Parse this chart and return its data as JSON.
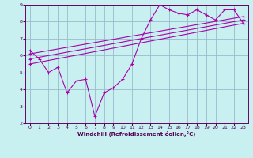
{
  "xlabel": "Windchill (Refroidissement éolien,°C)",
  "bg_color": "#c8f0f0",
  "line_color": "#aa00aa",
  "grid_color": "#99bbcc",
  "axis_color": "#660066",
  "text_color": "#550055",
  "xlim": [
    -0.5,
    23.5
  ],
  "ylim": [
    2,
    9
  ],
  "xticks": [
    0,
    1,
    2,
    3,
    4,
    5,
    6,
    7,
    8,
    9,
    10,
    11,
    12,
    13,
    14,
    15,
    16,
    17,
    18,
    19,
    20,
    21,
    22,
    23
  ],
  "yticks": [
    2,
    3,
    4,
    5,
    6,
    7,
    8,
    9
  ],
  "series1": [
    [
      0,
      6.3
    ],
    [
      1,
      5.8
    ],
    [
      2,
      5.0
    ],
    [
      3,
      5.3
    ],
    [
      4,
      3.8
    ],
    [
      5,
      4.5
    ],
    [
      6,
      4.6
    ],
    [
      7,
      2.4
    ],
    [
      8,
      3.8
    ],
    [
      9,
      4.1
    ],
    [
      10,
      4.6
    ],
    [
      11,
      5.5
    ],
    [
      12,
      7.0
    ],
    [
      13,
      8.1
    ],
    [
      14,
      9.0
    ],
    [
      15,
      8.7
    ],
    [
      16,
      8.5
    ],
    [
      17,
      8.4
    ],
    [
      18,
      8.7
    ],
    [
      19,
      8.4
    ],
    [
      20,
      8.1
    ],
    [
      21,
      8.7
    ],
    [
      22,
      8.7
    ],
    [
      23,
      7.9
    ]
  ],
  "line2": [
    [
      0,
      5.5
    ],
    [
      23,
      7.9
    ]
  ],
  "line3": [
    [
      0,
      5.8
    ],
    [
      23,
      8.1
    ]
  ],
  "line4": [
    [
      0,
      6.1
    ],
    [
      23,
      8.3
    ]
  ]
}
